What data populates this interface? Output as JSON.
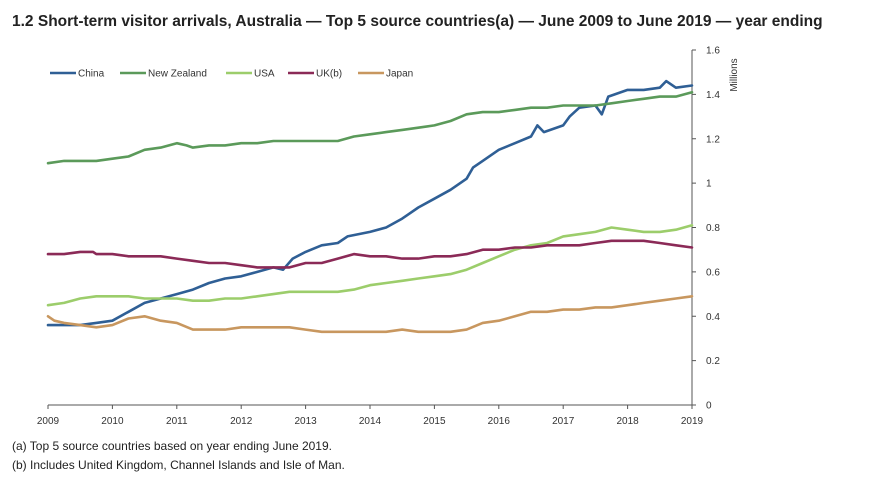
{
  "title": "1.2 Short-term visitor arrivals, Australia — Top 5 source countries(a) — June 2009 to June 2019 — year ending",
  "notes": [
    "(a) Top 5 source countries based on year ending June 2019.",
    "(b) Includes United Kingdom, Channel Islands and Isle of Man."
  ],
  "chart_data": {
    "type": "line",
    "ylabel": "Millions",
    "xlabel": "",
    "xlim": [
      2009,
      2019
    ],
    "ylim": [
      0,
      1.6
    ],
    "x_ticks": [
      "2009",
      "2010",
      "2011",
      "2012",
      "2013",
      "2014",
      "2015",
      "2016",
      "2017",
      "2018",
      "2019"
    ],
    "y_ticks": [
      "0",
      "0.2",
      "0.4",
      "0.6",
      "0.8",
      "1",
      "1.2",
      "1.4",
      "1.6"
    ],
    "grid": false,
    "legend_position": "top-left",
    "series": [
      {
        "name": "China",
        "color": "#2f5f95",
        "points": [
          [
            2009.0,
            0.36
          ],
          [
            2009.5,
            0.36
          ],
          [
            2009.75,
            0.37
          ],
          [
            2010.0,
            0.38
          ],
          [
            2010.25,
            0.42
          ],
          [
            2010.5,
            0.46
          ],
          [
            2010.75,
            0.48
          ],
          [
            2011.0,
            0.5
          ],
          [
            2011.25,
            0.52
          ],
          [
            2011.5,
            0.55
          ],
          [
            2011.75,
            0.57
          ],
          [
            2012.0,
            0.58
          ],
          [
            2012.25,
            0.6
          ],
          [
            2012.5,
            0.62
          ],
          [
            2012.65,
            0.61
          ],
          [
            2012.8,
            0.66
          ],
          [
            2013.0,
            0.69
          ],
          [
            2013.25,
            0.72
          ],
          [
            2013.5,
            0.73
          ],
          [
            2013.65,
            0.76
          ],
          [
            2014.0,
            0.78
          ],
          [
            2014.25,
            0.8
          ],
          [
            2014.5,
            0.84
          ],
          [
            2014.6,
            0.86
          ],
          [
            2014.75,
            0.89
          ],
          [
            2015.0,
            0.93
          ],
          [
            2015.25,
            0.97
          ],
          [
            2015.5,
            1.02
          ],
          [
            2015.6,
            1.07
          ],
          [
            2015.75,
            1.1
          ],
          [
            2016.0,
            1.15
          ],
          [
            2016.25,
            1.18
          ],
          [
            2016.5,
            1.21
          ],
          [
            2016.6,
            1.26
          ],
          [
            2016.7,
            1.23
          ],
          [
            2017.0,
            1.26
          ],
          [
            2017.1,
            1.3
          ],
          [
            2017.25,
            1.34
          ],
          [
            2017.5,
            1.35
          ],
          [
            2017.6,
            1.31
          ],
          [
            2017.7,
            1.39
          ],
          [
            2018.0,
            1.42
          ],
          [
            2018.25,
            1.42
          ],
          [
            2018.5,
            1.43
          ],
          [
            2018.6,
            1.46
          ],
          [
            2018.75,
            1.43
          ],
          [
            2019.0,
            1.44
          ]
        ]
      },
      {
        "name": "New Zealand",
        "color": "#5b9a5a",
        "points": [
          [
            2009.0,
            1.09
          ],
          [
            2009.25,
            1.1
          ],
          [
            2009.5,
            1.1
          ],
          [
            2009.75,
            1.1
          ],
          [
            2010.0,
            1.11
          ],
          [
            2010.25,
            1.12
          ],
          [
            2010.5,
            1.15
          ],
          [
            2010.75,
            1.16
          ],
          [
            2011.0,
            1.18
          ],
          [
            2011.15,
            1.17
          ],
          [
            2011.25,
            1.16
          ],
          [
            2011.5,
            1.17
          ],
          [
            2011.75,
            1.17
          ],
          [
            2012.0,
            1.18
          ],
          [
            2012.25,
            1.18
          ],
          [
            2012.5,
            1.19
          ],
          [
            2012.75,
            1.19
          ],
          [
            2013.0,
            1.19
          ],
          [
            2013.25,
            1.19
          ],
          [
            2013.5,
            1.19
          ],
          [
            2013.75,
            1.21
          ],
          [
            2014.0,
            1.22
          ],
          [
            2014.25,
            1.23
          ],
          [
            2014.5,
            1.24
          ],
          [
            2014.75,
            1.25
          ],
          [
            2015.0,
            1.26
          ],
          [
            2015.25,
            1.28
          ],
          [
            2015.5,
            1.31
          ],
          [
            2015.75,
            1.32
          ],
          [
            2016.0,
            1.32
          ],
          [
            2016.25,
            1.33
          ],
          [
            2016.5,
            1.34
          ],
          [
            2016.75,
            1.34
          ],
          [
            2017.0,
            1.35
          ],
          [
            2017.25,
            1.35
          ],
          [
            2017.5,
            1.35
          ],
          [
            2017.75,
            1.36
          ],
          [
            2018.0,
            1.37
          ],
          [
            2018.25,
            1.38
          ],
          [
            2018.5,
            1.39
          ],
          [
            2018.75,
            1.39
          ],
          [
            2019.0,
            1.41
          ]
        ]
      },
      {
        "name": "USA",
        "color": "#9ccd6b",
        "points": [
          [
            2009.0,
            0.45
          ],
          [
            2009.25,
            0.46
          ],
          [
            2009.5,
            0.48
          ],
          [
            2009.75,
            0.49
          ],
          [
            2010.0,
            0.49
          ],
          [
            2010.25,
            0.49
          ],
          [
            2010.5,
            0.48
          ],
          [
            2010.75,
            0.48
          ],
          [
            2011.0,
            0.48
          ],
          [
            2011.25,
            0.47
          ],
          [
            2011.5,
            0.47
          ],
          [
            2011.75,
            0.48
          ],
          [
            2012.0,
            0.48
          ],
          [
            2012.25,
            0.49
          ],
          [
            2012.5,
            0.5
          ],
          [
            2012.75,
            0.51
          ],
          [
            2013.0,
            0.51
          ],
          [
            2013.25,
            0.51
          ],
          [
            2013.5,
            0.51
          ],
          [
            2013.75,
            0.52
          ],
          [
            2014.0,
            0.54
          ],
          [
            2014.25,
            0.55
          ],
          [
            2014.5,
            0.56
          ],
          [
            2014.75,
            0.57
          ],
          [
            2015.0,
            0.58
          ],
          [
            2015.25,
            0.59
          ],
          [
            2015.5,
            0.61
          ],
          [
            2015.75,
            0.64
          ],
          [
            2016.0,
            0.67
          ],
          [
            2016.25,
            0.7
          ],
          [
            2016.5,
            0.72
          ],
          [
            2016.75,
            0.73
          ],
          [
            2017.0,
            0.76
          ],
          [
            2017.25,
            0.77
          ],
          [
            2017.5,
            0.78
          ],
          [
            2017.75,
            0.8
          ],
          [
            2018.0,
            0.79
          ],
          [
            2018.25,
            0.78
          ],
          [
            2018.5,
            0.78
          ],
          [
            2018.75,
            0.79
          ],
          [
            2019.0,
            0.81
          ]
        ]
      },
      {
        "name": "UK(b)",
        "color": "#8b2a57",
        "points": [
          [
            2009.0,
            0.68
          ],
          [
            2009.25,
            0.68
          ],
          [
            2009.5,
            0.69
          ],
          [
            2009.7,
            0.69
          ],
          [
            2009.75,
            0.68
          ],
          [
            2010.0,
            0.68
          ],
          [
            2010.25,
            0.67
          ],
          [
            2010.5,
            0.67
          ],
          [
            2010.75,
            0.67
          ],
          [
            2011.0,
            0.66
          ],
          [
            2011.25,
            0.65
          ],
          [
            2011.5,
            0.64
          ],
          [
            2011.75,
            0.64
          ],
          [
            2012.0,
            0.63
          ],
          [
            2012.25,
            0.62
          ],
          [
            2012.5,
            0.62
          ],
          [
            2012.75,
            0.62
          ],
          [
            2013.0,
            0.64
          ],
          [
            2013.25,
            0.64
          ],
          [
            2013.5,
            0.66
          ],
          [
            2013.75,
            0.68
          ],
          [
            2014.0,
            0.67
          ],
          [
            2014.25,
            0.67
          ],
          [
            2014.5,
            0.66
          ],
          [
            2014.75,
            0.66
          ],
          [
            2015.0,
            0.67
          ],
          [
            2015.25,
            0.67
          ],
          [
            2015.5,
            0.68
          ],
          [
            2015.75,
            0.7
          ],
          [
            2016.0,
            0.7
          ],
          [
            2016.25,
            0.71
          ],
          [
            2016.5,
            0.71
          ],
          [
            2016.75,
            0.72
          ],
          [
            2017.0,
            0.72
          ],
          [
            2017.25,
            0.72
          ],
          [
            2017.5,
            0.73
          ],
          [
            2017.75,
            0.74
          ],
          [
            2018.0,
            0.74
          ],
          [
            2018.25,
            0.74
          ],
          [
            2018.5,
            0.73
          ],
          [
            2018.75,
            0.72
          ],
          [
            2019.0,
            0.71
          ]
        ]
      },
      {
        "name": "Japan",
        "color": "#c8975f",
        "points": [
          [
            2009.0,
            0.4
          ],
          [
            2009.1,
            0.38
          ],
          [
            2009.25,
            0.37
          ],
          [
            2009.5,
            0.36
          ],
          [
            2009.75,
            0.35
          ],
          [
            2010.0,
            0.36
          ],
          [
            2010.25,
            0.39
          ],
          [
            2010.5,
            0.4
          ],
          [
            2010.75,
            0.38
          ],
          [
            2011.0,
            0.37
          ],
          [
            2011.25,
            0.34
          ],
          [
            2011.5,
            0.34
          ],
          [
            2011.75,
            0.34
          ],
          [
            2012.0,
            0.35
          ],
          [
            2012.25,
            0.35
          ],
          [
            2012.5,
            0.35
          ],
          [
            2012.75,
            0.35
          ],
          [
            2013.0,
            0.34
          ],
          [
            2013.25,
            0.33
          ],
          [
            2013.5,
            0.33
          ],
          [
            2013.75,
            0.33
          ],
          [
            2014.0,
            0.33
          ],
          [
            2014.25,
            0.33
          ],
          [
            2014.5,
            0.34
          ],
          [
            2014.75,
            0.33
          ],
          [
            2015.0,
            0.33
          ],
          [
            2015.25,
            0.33
          ],
          [
            2015.5,
            0.34
          ],
          [
            2015.75,
            0.37
          ],
          [
            2016.0,
            0.38
          ],
          [
            2016.25,
            0.4
          ],
          [
            2016.5,
            0.42
          ],
          [
            2016.75,
            0.42
          ],
          [
            2017.0,
            0.43
          ],
          [
            2017.25,
            0.43
          ],
          [
            2017.5,
            0.44
          ],
          [
            2017.75,
            0.44
          ],
          [
            2018.0,
            0.45
          ],
          [
            2018.25,
            0.46
          ],
          [
            2018.5,
            0.47
          ],
          [
            2018.75,
            0.48
          ],
          [
            2019.0,
            0.49
          ]
        ]
      }
    ]
  }
}
